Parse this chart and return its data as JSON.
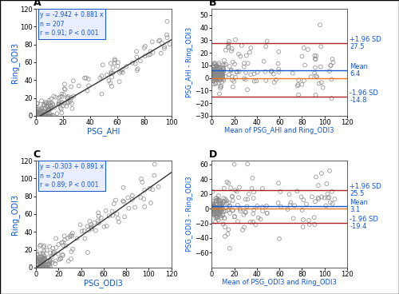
{
  "panel_A": {
    "label": "A",
    "equation": "y = -2.942 + 0.881 x",
    "n": "n = 207",
    "r": "r = 0.91; P < 0.001",
    "slope": 0.881,
    "intercept": -2.942,
    "xlabel": "PSG_AHI",
    "ylabel": "Ring_ODI3",
    "xlim": [
      0,
      100
    ],
    "ylim": [
      0,
      120
    ],
    "xticks": [
      0,
      20,
      40,
      60,
      80,
      100
    ],
    "yticks": [
      0,
      20,
      40,
      60,
      80,
      100,
      120
    ]
  },
  "panel_B": {
    "label": "B",
    "mean": 6.4,
    "sd_upper": 27.5,
    "sd_lower": -14.8,
    "xlabel": "Mean of PSG_AHI and Ring_ODI3",
    "ylabel": "PSG_AHI - Ring_ODI3",
    "xlim": [
      0,
      120
    ],
    "ylim": [
      -30,
      55
    ],
    "xticks": [
      0,
      20,
      40,
      60,
      80,
      100,
      120
    ],
    "yticks": [
      -30,
      -20,
      -10,
      0,
      10,
      20,
      30,
      40,
      50
    ],
    "label_mean": "Mean",
    "label_sd_upper": "+1.96 SD",
    "label_sd_lower": "-1.96 SD"
  },
  "panel_C": {
    "label": "C",
    "equation": "y = -0.303 + 0.891 x",
    "n": "n = 207",
    "r": "r = 0.89; P < 0.001",
    "slope": 0.891,
    "intercept": -0.303,
    "xlabel": "PSG_ODI3",
    "ylabel": "Ring_ODI3",
    "xlim": [
      0,
      120
    ],
    "ylim": [
      0,
      120
    ],
    "xticks": [
      0,
      20,
      40,
      60,
      80,
      100,
      120
    ],
    "yticks": [
      0,
      20,
      40,
      60,
      80,
      100,
      120
    ]
  },
  "panel_D": {
    "label": "D",
    "mean": 3.1,
    "sd_upper": 25.5,
    "sd_lower": -19.4,
    "xlabel": "Mean of PSG_ODI3 and Ring_ODI3",
    "ylabel": "PSG_ODI3 - Ring_ODI3",
    "xlim": [
      0,
      120
    ],
    "ylim": [
      -80,
      65
    ],
    "xticks": [
      0,
      20,
      40,
      60,
      80,
      100,
      120
    ],
    "yticks": [
      -60,
      -40,
      -20,
      0,
      20,
      40,
      60
    ],
    "label_mean": "Mean",
    "label_sd_upper": "+1.96 SD",
    "label_sd_lower": "-1.96 SD"
  },
  "scatter_facecolor": "none",
  "scatter_edgecolor": "#888888",
  "line_color": "#333333",
  "mean_line_color": "#E87820",
  "sd_line_color": "#AA2222",
  "blue_label_color": "#1155CC",
  "black_color": "#000000",
  "box_facecolor": "#E8EEFF",
  "box_edgecolor": "#1155CC",
  "marker_size": 3.5,
  "line_width": 1.0,
  "font_size_axis_label": 7,
  "font_size_tick": 6,
  "font_size_annot": 6,
  "font_size_panel": 9,
  "font_size_box": 5.5
}
